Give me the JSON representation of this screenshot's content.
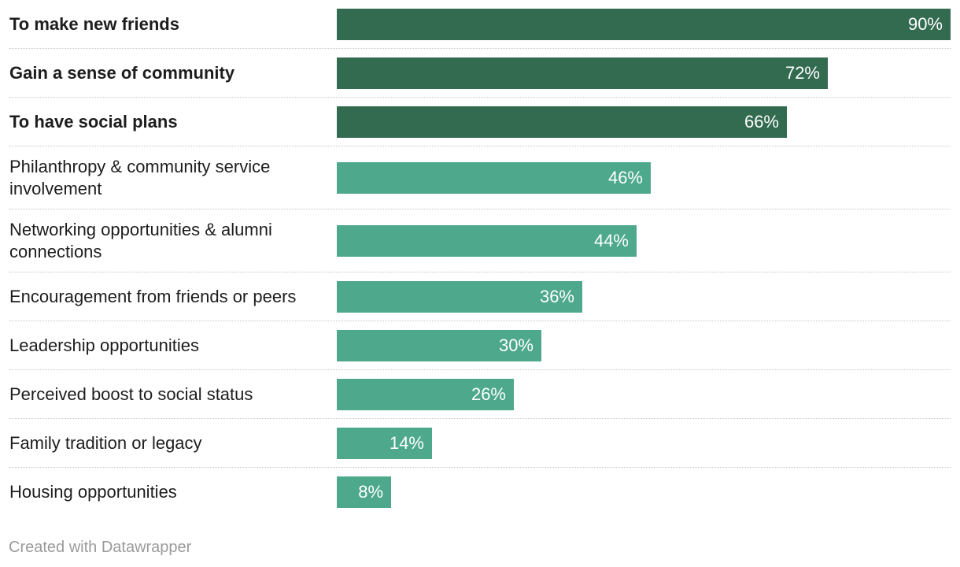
{
  "chart_data": {
    "type": "bar",
    "orientation": "horizontal",
    "title": "",
    "xlabel": "",
    "ylabel": "",
    "xlim": [
      0,
      90
    ],
    "value_suffix": "%",
    "categories": [
      "To make new friends",
      "Gain a sense of community",
      "To have social plans",
      "Philanthropy & community service involvement",
      "Networking opportunities & alumni connections",
      "Encouragement from friends or peers",
      "Leadership opportunities",
      "Perceived boost to social status",
      "Family tradition or legacy",
      "Housing opportunities"
    ],
    "values": [
      90,
      72,
      66,
      46,
      44,
      36,
      30,
      26,
      14,
      8
    ],
    "labels": [
      "90%",
      "72%",
      "66%",
      "46%",
      "44%",
      "36%",
      "30%",
      "26%",
      "14%",
      "8%"
    ],
    "highlighted": [
      true,
      true,
      true,
      false,
      false,
      false,
      false,
      false,
      false,
      false
    ],
    "colors": {
      "highlight": "#336b51",
      "default": "#4da88c"
    }
  },
  "footer": {
    "credit": "Created with Datawrapper"
  }
}
